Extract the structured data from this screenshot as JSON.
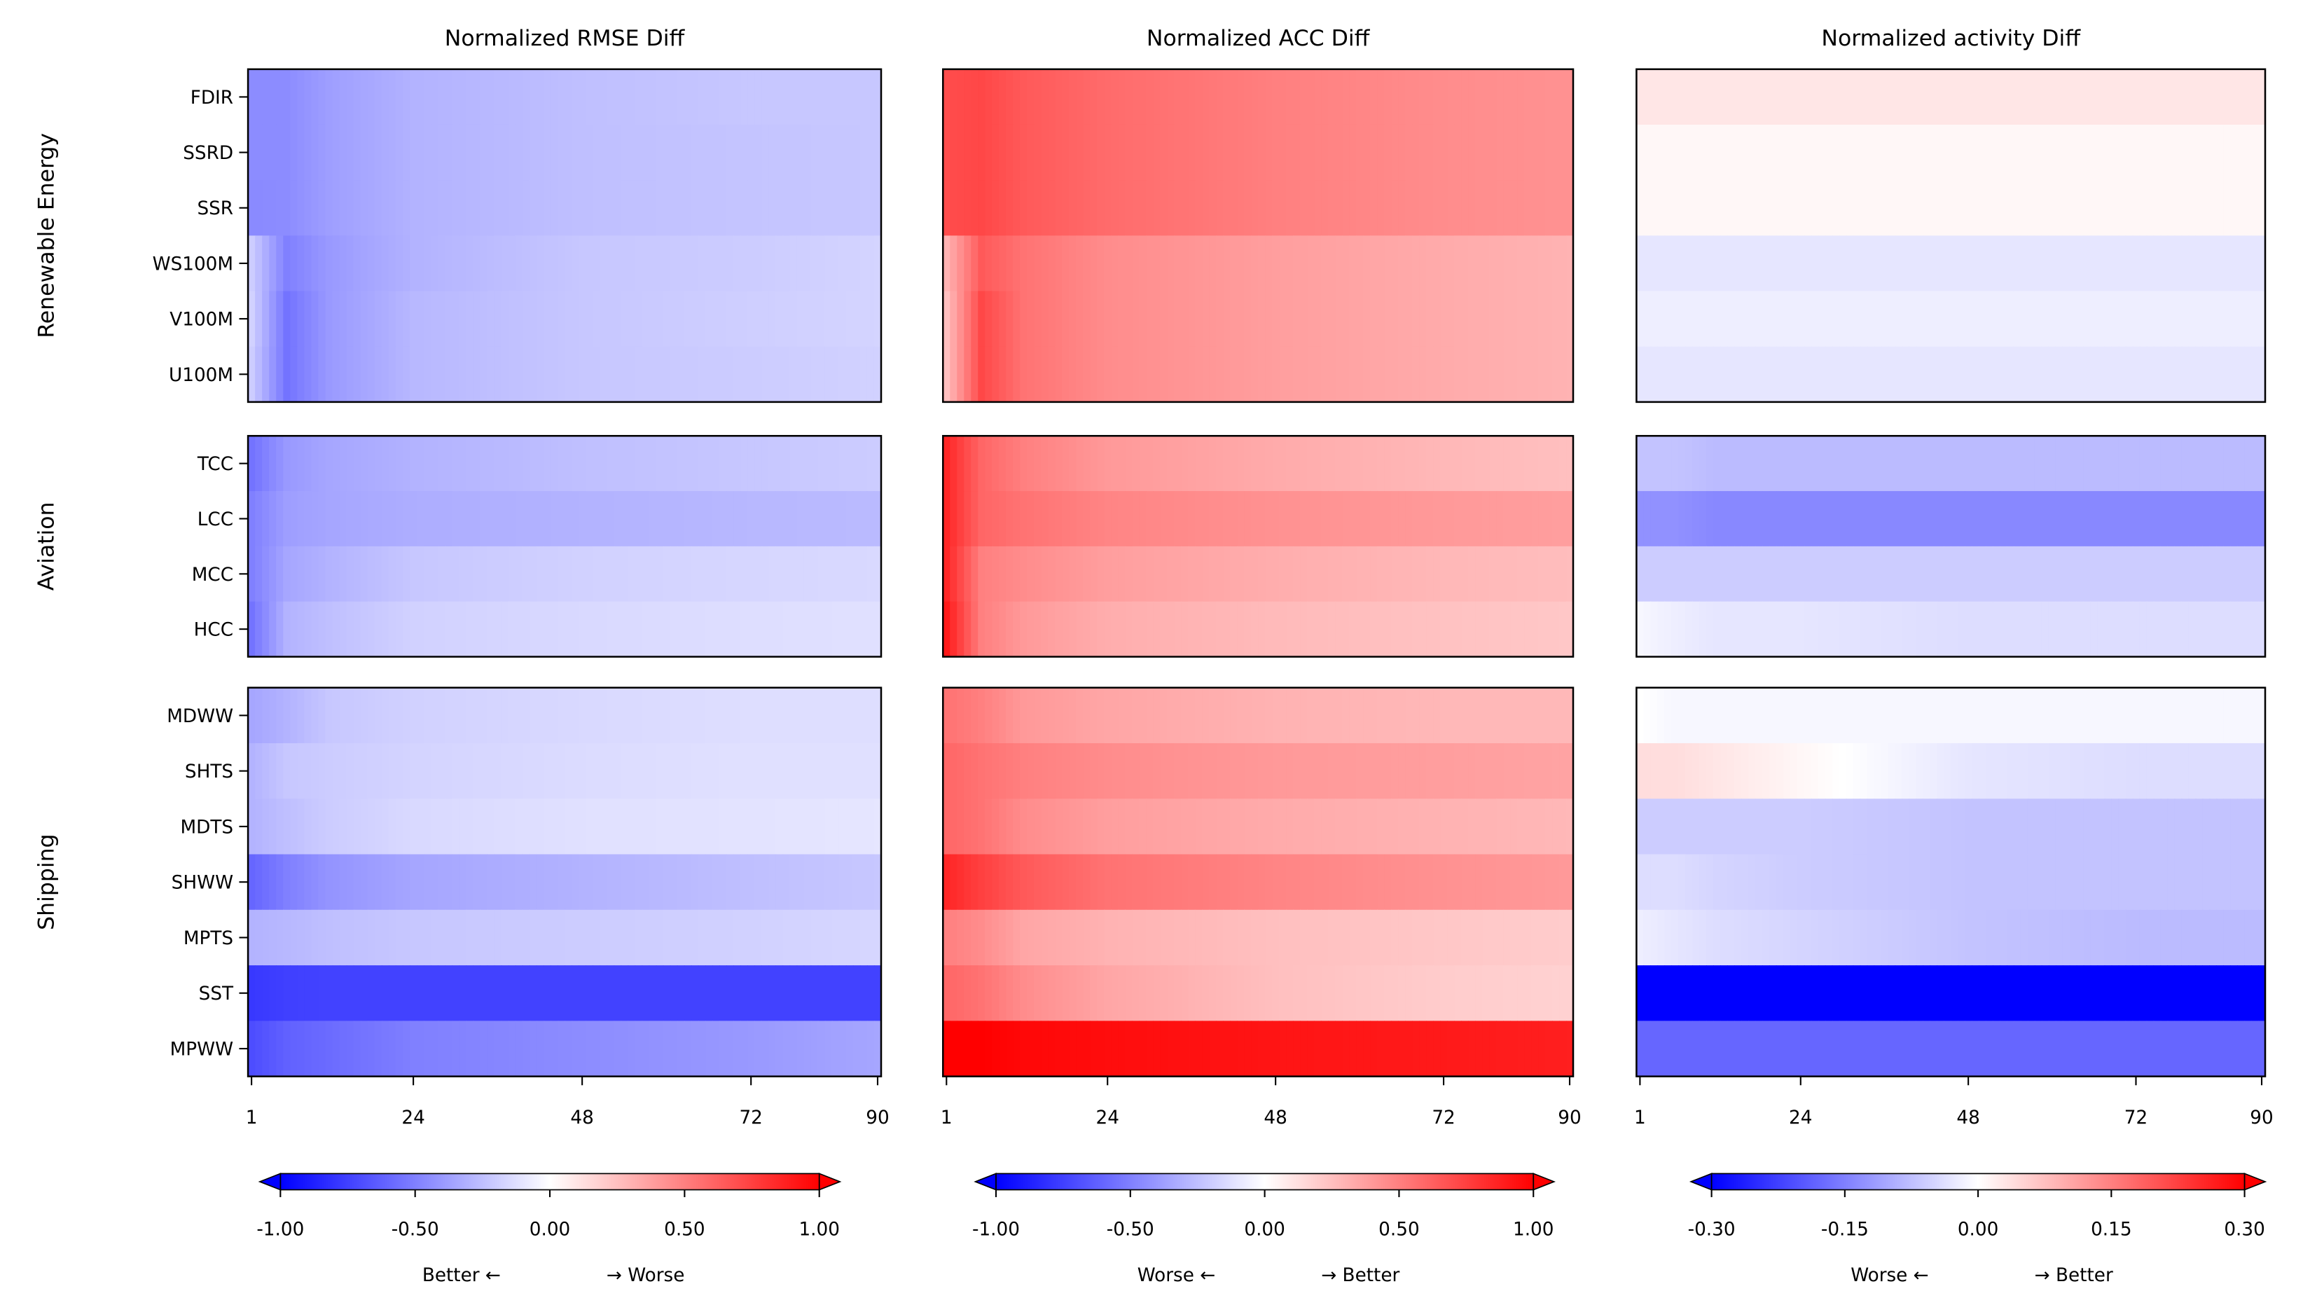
{
  "chart_data": [
    {
      "type": "heatmap",
      "title": "Normalized RMSE Diff",
      "x_ticks": [
        1,
        24,
        48,
        72,
        90
      ],
      "x_range": [
        1,
        90
      ],
      "sampled_leads": [
        1,
        6,
        12,
        24,
        48,
        72,
        90
      ],
      "colorbar": {
        "cmap": "bwr",
        "vmin": -1.0,
        "vmax": 1.0,
        "ticks": [
          "-1.00",
          "-0.50",
          "0.00",
          "0.50",
          "1.00"
        ],
        "label_left": "Better ←",
        "label_right": "→ Worse",
        "extend": "both"
      },
      "rows": {
        "FDIR": [
          -0.45,
          -0.45,
          -0.38,
          -0.3,
          -0.25,
          -0.22,
          -0.22
        ],
        "SSRD": [
          -0.45,
          -0.45,
          -0.38,
          -0.3,
          -0.25,
          -0.23,
          -0.22
        ],
        "SSR": [
          -0.46,
          -0.45,
          -0.38,
          -0.3,
          -0.25,
          -0.23,
          -0.22
        ],
        "WS100M": [
          -0.2,
          -0.5,
          -0.4,
          -0.3,
          -0.22,
          -0.2,
          -0.17
        ],
        "V100M": [
          -0.18,
          -0.55,
          -0.4,
          -0.28,
          -0.22,
          -0.19,
          -0.17
        ],
        "U100M": [
          -0.2,
          -0.55,
          -0.4,
          -0.28,
          -0.22,
          -0.2,
          -0.18
        ],
        "TCC": [
          -0.55,
          -0.4,
          -0.35,
          -0.3,
          -0.25,
          -0.22,
          -0.2
        ],
        "LCC": [
          -0.5,
          -0.38,
          -0.35,
          -0.32,
          -0.3,
          -0.28,
          -0.27
        ],
        "MCC": [
          -0.5,
          -0.35,
          -0.3,
          -0.22,
          -0.18,
          -0.16,
          -0.15
        ],
        "HCC": [
          -0.55,
          -0.3,
          -0.25,
          -0.18,
          -0.15,
          -0.13,
          -0.12
        ],
        "MDWW": [
          -0.35,
          -0.3,
          -0.22,
          -0.18,
          -0.15,
          -0.13,
          -0.13
        ],
        "SHTS": [
          -0.3,
          -0.22,
          -0.2,
          -0.17,
          -0.14,
          -0.12,
          -0.12
        ],
        "MDTS": [
          -0.3,
          -0.25,
          -0.2,
          -0.15,
          -0.12,
          -0.11,
          -0.1
        ],
        "SHWW": [
          -0.6,
          -0.5,
          -0.42,
          -0.35,
          -0.3,
          -0.25,
          -0.22
        ],
        "MPTS": [
          -0.3,
          -0.28,
          -0.25,
          -0.22,
          -0.2,
          -0.18,
          -0.16
        ],
        "SST": [
          -0.78,
          -0.75,
          -0.74,
          -0.74,
          -0.74,
          -0.74,
          -0.74
        ],
        "MPWW": [
          -0.7,
          -0.62,
          -0.58,
          -0.5,
          -0.45,
          -0.4,
          -0.35
        ]
      }
    },
    {
      "type": "heatmap",
      "title": "Normalized ACC Diff",
      "x_ticks": [
        1,
        24,
        48,
        72,
        90
      ],
      "x_range": [
        1,
        90
      ],
      "sampled_leads": [
        1,
        6,
        12,
        24,
        48,
        72,
        90
      ],
      "colorbar": {
        "cmap": "bwr",
        "vmin": -1.0,
        "vmax": 1.0,
        "ticks": [
          "-1.00",
          "-0.50",
          "0.00",
          "0.50",
          "1.00"
        ],
        "label_left": "Worse ←",
        "label_right": "→ Better",
        "extend": "both"
      },
      "rows": {
        "FDIR": [
          0.7,
          0.72,
          0.65,
          0.58,
          0.5,
          0.45,
          0.43
        ],
        "SSRD": [
          0.7,
          0.72,
          0.65,
          0.58,
          0.5,
          0.45,
          0.43
        ],
        "SSR": [
          0.7,
          0.72,
          0.65,
          0.58,
          0.5,
          0.45,
          0.43
        ],
        "WS100M": [
          0.3,
          0.65,
          0.55,
          0.45,
          0.38,
          0.33,
          0.3
        ],
        "V100M": [
          0.25,
          0.72,
          0.55,
          0.45,
          0.38,
          0.33,
          0.3
        ],
        "U100M": [
          0.25,
          0.72,
          0.55,
          0.45,
          0.38,
          0.33,
          0.3
        ],
        "TCC": [
          0.85,
          0.6,
          0.5,
          0.4,
          0.33,
          0.28,
          0.25
        ],
        "LCC": [
          0.85,
          0.6,
          0.55,
          0.48,
          0.43,
          0.4,
          0.38
        ],
        "MCC": [
          0.85,
          0.5,
          0.45,
          0.38,
          0.32,
          0.28,
          0.26
        ],
        "HCC": [
          0.9,
          0.5,
          0.4,
          0.32,
          0.27,
          0.24,
          0.22
        ],
        "MDWW": [
          0.55,
          0.5,
          0.4,
          0.35,
          0.3,
          0.28,
          0.28
        ],
        "SHTS": [
          0.6,
          0.55,
          0.5,
          0.45,
          0.4,
          0.38,
          0.36
        ],
        "MDTS": [
          0.6,
          0.55,
          0.45,
          0.38,
          0.33,
          0.3,
          0.28
        ],
        "SHWW": [
          0.85,
          0.75,
          0.65,
          0.55,
          0.48,
          0.43,
          0.4
        ],
        "MPTS": [
          0.5,
          0.45,
          0.35,
          0.3,
          0.25,
          0.22,
          0.2
        ],
        "SST": [
          0.6,
          0.55,
          0.45,
          0.35,
          0.25,
          0.2,
          0.18
        ],
        "MPWW": [
          1.0,
          1.0,
          0.97,
          0.95,
          0.92,
          0.9,
          0.88
        ]
      }
    },
    {
      "type": "heatmap",
      "title": "Normalized activity Diff",
      "x_ticks": [
        1,
        24,
        48,
        72,
        90
      ],
      "x_range": [
        1,
        90
      ],
      "sampled_leads": [
        1,
        6,
        12,
        24,
        48,
        72,
        90
      ],
      "colorbar": {
        "cmap": "bwr",
        "vmin": -0.3,
        "vmax": 0.3,
        "ticks": [
          "-0.30",
          "-0.15",
          "0.00",
          "0.15",
          "0.30"
        ],
        "label_left": "Worse ←",
        "label_right": "→ Better",
        "extend": "both"
      },
      "rows": {
        "FDIR": [
          0.03,
          0.03,
          0.03,
          0.03,
          0.03,
          0.03,
          0.03
        ],
        "SSRD": [
          0.01,
          0.01,
          0.01,
          0.01,
          0.01,
          0.01,
          0.01
        ],
        "SSR": [
          0.01,
          0.01,
          0.01,
          0.01,
          0.01,
          0.01,
          0.01
        ],
        "WS100M": [
          -0.03,
          -0.03,
          -0.03,
          -0.03,
          -0.03,
          -0.03,
          -0.03
        ],
        "V100M": [
          -0.02,
          -0.02,
          -0.02,
          -0.02,
          -0.02,
          -0.02,
          -0.02
        ],
        "U100M": [
          -0.03,
          -0.03,
          -0.03,
          -0.03,
          -0.03,
          -0.03,
          -0.03
        ],
        "TCC": [
          -0.07,
          -0.07,
          -0.08,
          -0.08,
          -0.08,
          -0.08,
          -0.08
        ],
        "LCC": [
          -0.13,
          -0.13,
          -0.14,
          -0.14,
          -0.14,
          -0.14,
          -0.14
        ],
        "MCC": [
          -0.06,
          -0.06,
          -0.06,
          -0.06,
          -0.06,
          -0.06,
          -0.06
        ],
        "HCC": [
          -0.01,
          -0.02,
          -0.03,
          -0.03,
          -0.04,
          -0.04,
          -0.04
        ],
        "MDWW": [
          0.0,
          -0.01,
          -0.01,
          -0.01,
          -0.01,
          -0.01,
          -0.01
        ],
        "SHTS": [
          0.04,
          0.04,
          0.03,
          0.01,
          -0.03,
          -0.04,
          -0.04
        ],
        "MDTS": [
          -0.06,
          -0.06,
          -0.06,
          -0.06,
          -0.07,
          -0.07,
          -0.07
        ],
        "SHWW": [
          -0.04,
          -0.04,
          -0.05,
          -0.06,
          -0.07,
          -0.07,
          -0.07
        ],
        "MPTS": [
          -0.02,
          -0.03,
          -0.04,
          -0.05,
          -0.07,
          -0.08,
          -0.08
        ],
        "SST": [
          -0.3,
          -0.3,
          -0.3,
          -0.3,
          -0.3,
          -0.3,
          -0.3
        ],
        "MPWW": [
          -0.18,
          -0.18,
          -0.18,
          -0.18,
          -0.18,
          -0.18,
          -0.18
        ]
      }
    }
  ],
  "groups": [
    {
      "label": "Renewable Energy",
      "variables": [
        "FDIR",
        "SSRD",
        "SSR",
        "WS100M",
        "V100M",
        "U100M"
      ]
    },
    {
      "label": "Aviation",
      "variables": [
        "TCC",
        "LCC",
        "MCC",
        "HCC"
      ]
    },
    {
      "label": "Shipping",
      "variables": [
        "MDWW",
        "SHTS",
        "MDTS",
        "SHWW",
        "MPTS",
        "SST",
        "MPWW"
      ]
    }
  ]
}
